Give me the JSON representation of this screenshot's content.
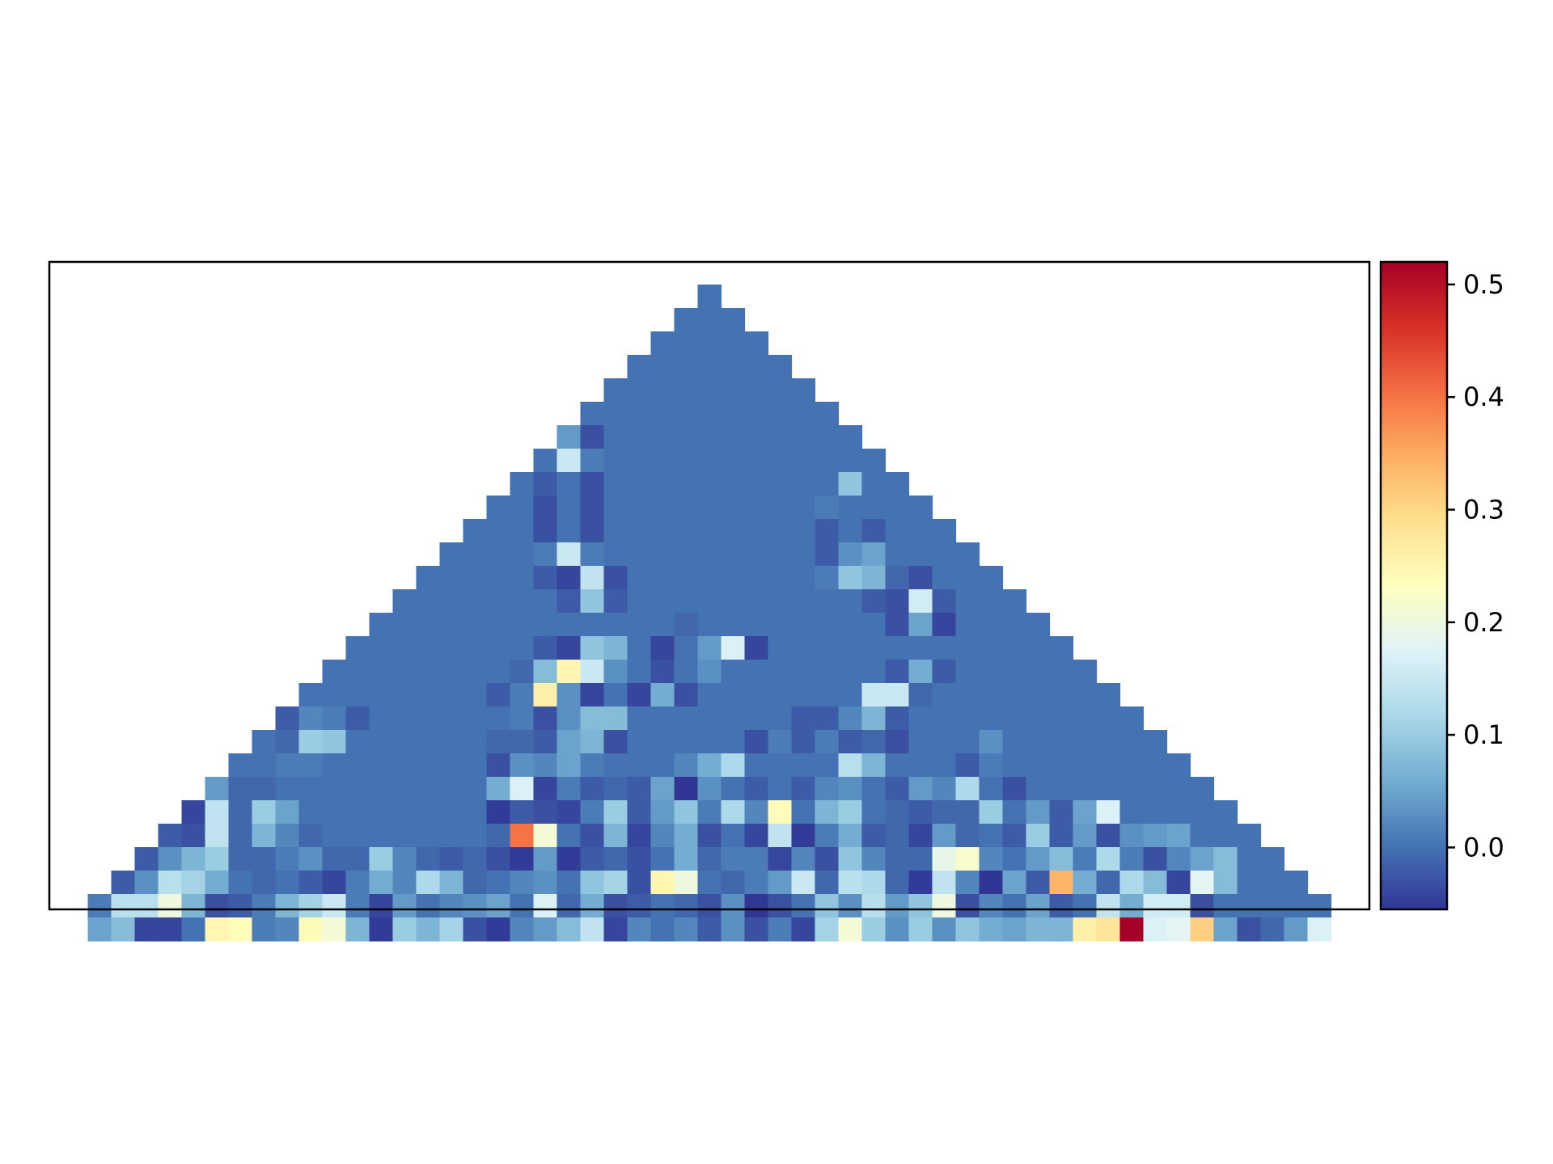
{
  "chart_data": {
    "type": "heatmap",
    "description_shape": "triangular heatmap, rows from apex (row 0, 1 cell) to base (row 27, 53 cells)",
    "colormap": "RdYlBu_r",
    "colorbar": {
      "vmin": -0.055,
      "vmax": 0.52,
      "ticks": [
        0.0,
        0.1,
        0.2,
        0.3,
        0.4,
        0.5
      ],
      "tick_labels": [
        "0.0",
        "0.1",
        "0.2",
        "0.3",
        "0.4",
        "0.5"
      ],
      "position": "right"
    },
    "title": "",
    "xlabel": "",
    "ylabel": "",
    "grid": false,
    "background": 0.0,
    "rows": [
      {
        "row": 0,
        "cells": {}
      },
      {
        "row": 4,
        "cells": {
          "0": 0.04,
          "1": -0.03
        }
      },
      {
        "row": 5,
        "cells": {
          "1": 0.15,
          "2": 0.01
        }
      },
      {
        "row": 6,
        "cells": {
          "1": -0.02,
          "3": -0.03,
          "14": 0.09
        }
      },
      {
        "row": 7,
        "cells": {
          "2": -0.03,
          "4": -0.03,
          "14": 0.01
        }
      },
      {
        "row": 8,
        "cells": {
          "3": -0.03,
          "5": -0.03,
          "15": -0.02,
          "17": -0.02
        }
      },
      {
        "row": 9,
        "cells": {
          "4": 0.01,
          "5": 0.15,
          "6": 0.01,
          "16": -0.02,
          "17": 0.03,
          "18": 0.05,
          "19": 0.0
        }
      },
      {
        "row": 10,
        "cells": {
          "5": -0.02,
          "6": -0.04,
          "7": 0.14,
          "8": -0.03,
          "17": 0.01,
          "18": 0.09,
          "19": 0.07,
          "20": -0.01,
          "21": -0.03
        }
      },
      {
        "row": 11,
        "cells": {
          "7": -0.02,
          "8": 0.09,
          "9": -0.02,
          "20": -0.02,
          "21": -0.03,
          "22": 0.16,
          "23": -0.02
        }
      },
      {
        "row": 12,
        "cells": {
          "13": -0.01,
          "22": -0.03,
          "23": 0.05,
          "24": -0.04
        }
      },
      {
        "row": 13,
        "cells": {
          "8": -0.02,
          "9": -0.04,
          "10": 0.09,
          "11": 0.07,
          "13": -0.04,
          "15": 0.04,
          "16": 0.17,
          "17": -0.04
        }
      },
      {
        "row": 14,
        "cells": {
          "8": -0.01,
          "9": 0.08,
          "10": 0.25,
          "11": 0.15,
          "12": 0.03,
          "14": -0.03,
          "16": 0.03,
          "24": -0.02,
          "25": 0.06,
          "26": -0.02
        }
      },
      {
        "row": 15,
        "cells": {
          "8": -0.02,
          "9": 0.01,
          "10": 0.26,
          "11": 0.03,
          "12": -0.04,
          "14": -0.04,
          "15": 0.06,
          "16": -0.03,
          "24": 0.15,
          "25": 0.15,
          "26": -0.01
        }
      },
      {
        "row": 16,
        "cells": {
          "0": -0.02,
          "1": 0.02,
          "2": 0.01,
          "3": -0.02,
          "10": 0.01,
          "11": -0.03,
          "12": 0.03,
          "13": 0.08,
          "14": 0.08,
          "15": 0.0,
          "22": -0.02,
          "23": -0.02,
          "24": 0.02,
          "25": 0.07,
          "26": -0.02
        }
      },
      {
        "row": 17,
        "cells": {
          "1": -0.01,
          "2": 0.1,
          "3": 0.09,
          "10": -0.01,
          "11": -0.01,
          "12": -0.02,
          "13": 0.05,
          "14": 0.07,
          "15": -0.03,
          "21": -0.03,
          "22": 0.01,
          "23": -0.02,
          "24": 0.01,
          "25": -0.02,
          "26": -0.01,
          "27": -0.03,
          "31": 0.03
        }
      },
      {
        "row": 18,
        "cells": {
          "2": 0.01,
          "3": 0.01,
          "11": -0.03,
          "12": 0.03,
          "13": 0.02,
          "14": 0.05,
          "15": 0.01,
          "19": 0.02,
          "20": 0.06,
          "21": 0.12,
          "26": 0.13,
          "27": 0.07,
          "31": -0.02,
          "32": 0.01
        }
      },
      {
        "row": 19,
        "cells": {
          "0": 0.04,
          "1": -0.01,
          "2": -0.01,
          "12": 0.06,
          "13": 0.17,
          "14": -0.04,
          "15": 0.01,
          "16": -0.02,
          "17": -0.01,
          "18": -0.02,
          "19": 0.05,
          "20": -0.06,
          "21": 0.03,
          "23": -0.02,
          "25": -0.02,
          "26": 0.02,
          "27": 0.03,
          "29": -0.02,
          "30": 0.04,
          "31": 0.02,
          "32": 0.12,
          "33": 0.0,
          "34": -0.03
        }
      },
      {
        "row": 20,
        "cells": {
          "0": -0.04,
          "1": 0.14,
          "2": -0.01,
          "3": 0.1,
          "4": 0.05,
          "13": -0.05,
          "14": -0.02,
          "15": -0.03,
          "16": -0.04,
          "17": 0.01,
          "18": 0.1,
          "19": -0.02,
          "20": 0.04,
          "21": 0.09,
          "22": 0.01,
          "23": 0.12,
          "24": 0.02,
          "25": 0.24,
          "26": 0.0,
          "27": 0.07,
          "28": 0.1,
          "29": 0.0,
          "30": -0.01,
          "31": -0.02,
          "32": -0.01,
          "33": -0.01,
          "34": 0.1,
          "35": 0.0,
          "36": 0.04,
          "37": -0.02,
          "38": 0.05,
          "39": 0.17
        }
      },
      {
        "row": 21,
        "cells": {
          "0": -0.02,
          "1": -0.03,
          "2": 0.14,
          "3": -0.01,
          "4": 0.07,
          "5": 0.02,
          "6": -0.01,
          "14": -0.01,
          "15": 0.4,
          "16": 0.21,
          "17": 0.0,
          "18": -0.03,
          "19": 0.07,
          "20": -0.04,
          "21": 0.02,
          "22": 0.06,
          "23": -0.03,
          "24": 0.0,
          "25": -0.04,
          "26": 0.14,
          "27": -0.05,
          "28": 0.01,
          "29": 0.06,
          "30": -0.02,
          "31": -0.01,
          "32": -0.04,
          "33": 0.04,
          "34": -0.01,
          "35": 0.0,
          "36": -0.02,
          "37": 0.1,
          "38": -0.02,
          "39": 0.04,
          "40": -0.03,
          "41": 0.03,
          "42": 0.04,
          "43": 0.05
        }
      },
      {
        "row": 22,
        "cells": {
          "0": -0.02,
          "1": 0.03,
          "2": 0.07,
          "3": 0.1,
          "4": -0.01,
          "5": -0.01,
          "6": 0.01,
          "7": 0.03,
          "8": -0.01,
          "9": -0.01,
          "10": 0.1,
          "11": 0.02,
          "12": -0.01,
          "13": -0.02,
          "14": -0.01,
          "15": -0.03,
          "16": -0.05,
          "17": 0.04,
          "18": -0.05,
          "19": -0.02,
          "20": -0.01,
          "21": -0.03,
          "22": 0.0,
          "23": 0.06,
          "24": -0.01,
          "25": 0.01,
          "26": 0.01,
          "27": -0.04,
          "28": 0.02,
          "29": -0.03,
          "30": 0.09,
          "31": 0.02,
          "32": -0.01,
          "33": -0.01,
          "34": 0.19,
          "35": 0.22,
          "36": 0.02,
          "37": 0.0,
          "38": 0.04,
          "39": 0.08,
          "40": 0.01,
          "41": 0.12,
          "42": 0.01,
          "43": -0.03,
          "44": 0.02,
          "45": 0.05,
          "46": 0.08
        }
      },
      {
        "row": 23,
        "cells": {
          "0": -0.02,
          "1": 0.03,
          "2": 0.13,
          "3": 0.11,
          "4": 0.06,
          "5": 0.0,
          "6": -0.01,
          "7": 0.0,
          "8": -0.02,
          "9": -0.04,
          "10": 0.01,
          "11": 0.06,
          "12": 0.02,
          "13": 0.12,
          "14": 0.07,
          "15": -0.01,
          "16": 0.0,
          "17": 0.02,
          "18": 0.03,
          "19": 0.0,
          "20": 0.09,
          "21": 0.11,
          "22": -0.03,
          "23": 0.25,
          "24": 0.2,
          "25": 0.0,
          "26": -0.01,
          "27": 0.01,
          "28": 0.04,
          "29": 0.15,
          "30": -0.01,
          "31": 0.13,
          "32": 0.12,
          "33": -0.01,
          "34": -0.05,
          "35": 0.14,
          "36": 0.02,
          "37": -0.06,
          "38": 0.05,
          "39": -0.02,
          "40": 0.34,
          "41": 0.06,
          "42": -0.01,
          "43": 0.12,
          "44": 0.08,
          "45": -0.04,
          "46": 0.18,
          "47": 0.08
        }
      },
      {
        "row": 24,
        "cells": {
          "0": 0.01,
          "1": 0.13,
          "2": 0.13,
          "3": 0.2,
          "4": 0.07,
          "5": -0.03,
          "6": -0.02,
          "7": 0.01,
          "8": 0.07,
          "9": 0.11,
          "10": 0.15,
          "11": 0.01,
          "12": -0.04,
          "13": 0.04,
          "14": 0.0,
          "15": 0.02,
          "16": 0.03,
          "17": 0.05,
          "18": 0.0,
          "19": 0.17,
          "20": -0.01,
          "21": 0.06,
          "22": -0.03,
          "23": -0.02,
          "24": 0.0,
          "25": -0.01,
          "26": -0.03,
          "27": 0.03,
          "28": -0.06,
          "29": -0.03,
          "30": 0.0,
          "31": 0.09,
          "32": 0.03,
          "33": 0.13,
          "34": 0.04,
          "35": 0.09,
          "36": 0.2,
          "37": -0.03,
          "38": 0.02,
          "39": 0.0,
          "40": 0.05,
          "41": -0.02,
          "42": 0.0,
          "43": 0.14,
          "44": 0.06,
          "45": 0.16,
          "46": 0.16,
          "47": -0.03
        }
      },
      {
        "row": 25,
        "cells": {
          "0": 0.05,
          "1": 0.08,
          "2": -0.04,
          "3": -0.04,
          "4": 0.0,
          "5": 0.25,
          "6": 0.24,
          "7": 0.01,
          "8": 0.02,
          "9": 0.24,
          "10": 0.21,
          "11": 0.07,
          "12": -0.05,
          "13": 0.1,
          "14": 0.07,
          "15": 0.11,
          "16": -0.03,
          "17": -0.05,
          "18": 0.02,
          "19": 0.04,
          "20": 0.08,
          "21": 0.14,
          "22": -0.04,
          "23": 0.02,
          "24": 0.0,
          "25": 0.02,
          "26": -0.02,
          "27": 0.03,
          "28": -0.03,
          "29": 0.01,
          "30": -0.04,
          "31": 0.11,
          "32": 0.21,
          "33": 0.1,
          "34": 0.03,
          "35": 0.1,
          "36": 0.03,
          "37": 0.09,
          "38": 0.06,
          "39": 0.05,
          "40": 0.07,
          "41": 0.07,
          "42": 0.26,
          "43": 0.28,
          "44": 0.52,
          "45": 0.17,
          "46": 0.18,
          "47": 0.31,
          "48": 0.05,
          "49": -0.03,
          "50": -0.01,
          "51": 0.04,
          "52": 0.17
        }
      }
    ]
  }
}
